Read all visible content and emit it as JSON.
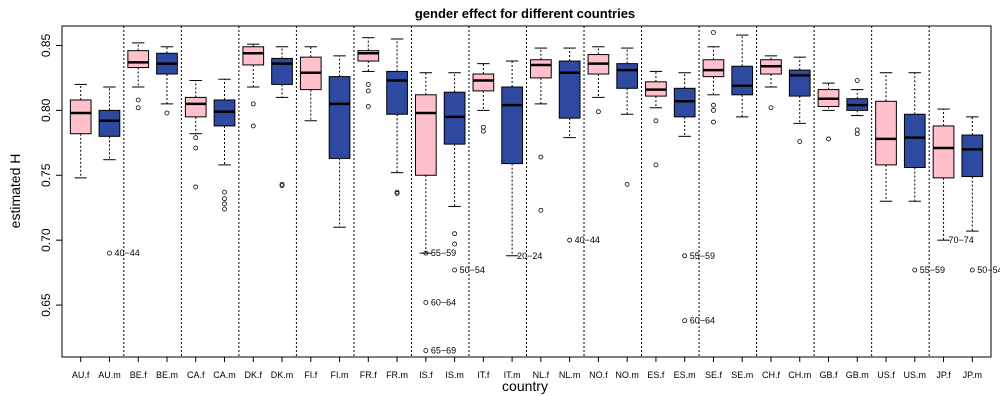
{
  "chart_data": {
    "type": "boxplot",
    "title": "gender effect for different countries",
    "xlabel": "country",
    "ylabel": "estimated H",
    "ylim": [
      0.61,
      0.865
    ],
    "yticks": [
      0.65,
      0.7,
      0.75,
      0.8,
      0.85
    ],
    "ytick_labels": [
      "0.65",
      "0.70",
      "0.75",
      "0.80",
      "0.85"
    ],
    "grid": false,
    "colors": {
      "female": "#ffc0cb",
      "male": "#2e4aa0"
    },
    "categories": [
      "AU.f",
      "AU.m",
      "BE.f",
      "BE.m",
      "CA.f",
      "CA.m",
      "DK.f",
      "DK.m",
      "FI.f",
      "FI.m",
      "FR.f",
      "FR.m",
      "IS.f",
      "IS.m",
      "IT.f",
      "IT.m",
      "NL.f",
      "NL.m",
      "NO.f",
      "NO.m",
      "ES.f",
      "ES.m",
      "SE.f",
      "SE.m",
      "CH.f",
      "CH.m",
      "GB.f",
      "GB.m",
      "US.f",
      "US.m",
      "JP.f",
      "JP.m"
    ],
    "boxes": [
      {
        "label": "AU.f",
        "sex": "f",
        "whisker_low": 0.748,
        "q1": 0.782,
        "median": 0.798,
        "q3": 0.808,
        "whisker_high": 0.82,
        "outliers": []
      },
      {
        "label": "AU.m",
        "sex": "m",
        "whisker_low": 0.762,
        "q1": 0.78,
        "median": 0.792,
        "q3": 0.8,
        "whisker_high": 0.818,
        "outliers": [
          0.69
        ]
      },
      {
        "label": "BE.f",
        "sex": "f",
        "whisker_low": 0.818,
        "q1": 0.833,
        "median": 0.837,
        "q3": 0.846,
        "whisker_high": 0.852,
        "outliers": [
          0.808,
          0.802
        ]
      },
      {
        "label": "BE.m",
        "sex": "m",
        "whisker_low": 0.805,
        "q1": 0.828,
        "median": 0.836,
        "q3": 0.844,
        "whisker_high": 0.849,
        "outliers": [
          0.798
        ]
      },
      {
        "label": "CA.f",
        "sex": "f",
        "whisker_low": 0.782,
        "q1": 0.795,
        "median": 0.805,
        "q3": 0.81,
        "whisker_high": 0.823,
        "outliers": [
          0.771,
          0.779,
          0.741
        ]
      },
      {
        "label": "CA.m",
        "sex": "m",
        "whisker_low": 0.758,
        "q1": 0.788,
        "median": 0.799,
        "q3": 0.808,
        "whisker_high": 0.824,
        "outliers": [
          0.737,
          0.732,
          0.728,
          0.724
        ]
      },
      {
        "label": "DK.f",
        "sex": "f",
        "whisker_low": 0.818,
        "q1": 0.835,
        "median": 0.844,
        "q3": 0.849,
        "whisker_high": 0.851,
        "outliers": [
          0.805,
          0.788
        ]
      },
      {
        "label": "DK.m",
        "sex": "m",
        "whisker_low": 0.81,
        "q1": 0.82,
        "median": 0.836,
        "q3": 0.84,
        "whisker_high": 0.849,
        "outliers": [
          0.742,
          0.743
        ]
      },
      {
        "label": "FI.f",
        "sex": "f",
        "whisker_low": 0.792,
        "q1": 0.816,
        "median": 0.829,
        "q3": 0.841,
        "whisker_high": 0.849,
        "outliers": []
      },
      {
        "label": "FI.m",
        "sex": "m",
        "whisker_low": 0.71,
        "q1": 0.763,
        "median": 0.805,
        "q3": 0.826,
        "whisker_high": 0.842,
        "outliers": []
      },
      {
        "label": "FR.f",
        "sex": "f",
        "whisker_low": 0.83,
        "q1": 0.838,
        "median": 0.844,
        "q3": 0.846,
        "whisker_high": 0.856,
        "outliers": [
          0.82,
          0.815,
          0.803
        ]
      },
      {
        "label": "FR.m",
        "sex": "m",
        "whisker_low": 0.752,
        "q1": 0.797,
        "median": 0.823,
        "q3": 0.83,
        "whisker_high": 0.855,
        "outliers": [
          0.737,
          0.736
        ]
      },
      {
        "label": "IS.f",
        "sex": "f",
        "whisker_low": 0.69,
        "q1": 0.75,
        "median": 0.798,
        "q3": 0.812,
        "whisker_high": 0.829,
        "outliers": [
          0.69,
          0.652,
          0.615
        ]
      },
      {
        "label": "IS.m",
        "sex": "m",
        "whisker_low": 0.726,
        "q1": 0.774,
        "median": 0.795,
        "q3": 0.814,
        "whisker_high": 0.829,
        "outliers": [
          0.705,
          0.697,
          0.677
        ]
      },
      {
        "label": "IT.f",
        "sex": "f",
        "whisker_low": 0.8,
        "q1": 0.815,
        "median": 0.823,
        "q3": 0.828,
        "whisker_high": 0.836,
        "outliers": [
          0.787,
          0.784
        ]
      },
      {
        "label": "IT.m",
        "sex": "m",
        "whisker_low": 0.688,
        "q1": 0.759,
        "median": 0.804,
        "q3": 0.818,
        "whisker_high": 0.838,
        "outliers": []
      },
      {
        "label": "NL.f",
        "sex": "f",
        "whisker_low": 0.805,
        "q1": 0.825,
        "median": 0.835,
        "q3": 0.839,
        "whisker_high": 0.848,
        "outliers": [
          0.764,
          0.723
        ]
      },
      {
        "label": "NL.m",
        "sex": "m",
        "whisker_low": 0.779,
        "q1": 0.794,
        "median": 0.829,
        "q3": 0.838,
        "whisker_high": 0.848,
        "outliers": [
          0.7
        ]
      },
      {
        "label": "NO.f",
        "sex": "f",
        "whisker_low": 0.81,
        "q1": 0.828,
        "median": 0.836,
        "q3": 0.843,
        "whisker_high": 0.849,
        "outliers": [
          0.799
        ]
      },
      {
        "label": "NO.m",
        "sex": "m",
        "whisker_low": 0.797,
        "q1": 0.817,
        "median": 0.831,
        "q3": 0.836,
        "whisker_high": 0.848,
        "outliers": [
          0.743
        ]
      },
      {
        "label": "ES.f",
        "sex": "f",
        "whisker_low": 0.802,
        "q1": 0.811,
        "median": 0.816,
        "q3": 0.822,
        "whisker_high": 0.83,
        "outliers": [
          0.792,
          0.758
        ]
      },
      {
        "label": "ES.m",
        "sex": "m",
        "whisker_low": 0.78,
        "q1": 0.795,
        "median": 0.807,
        "q3": 0.817,
        "whisker_high": 0.829,
        "outliers": [
          0.688,
          0.638
        ]
      },
      {
        "label": "SE.f",
        "sex": "f",
        "whisker_low": 0.812,
        "q1": 0.826,
        "median": 0.831,
        "q3": 0.839,
        "whisker_high": 0.849,
        "outliers": [
          0.86,
          0.804,
          0.8,
          0.791
        ]
      },
      {
        "label": "SE.m",
        "sex": "m",
        "whisker_low": 0.795,
        "q1": 0.812,
        "median": 0.819,
        "q3": 0.834,
        "whisker_high": 0.858,
        "outliers": []
      },
      {
        "label": "CH.f",
        "sex": "f",
        "whisker_low": 0.818,
        "q1": 0.828,
        "median": 0.834,
        "q3": 0.839,
        "whisker_high": 0.842,
        "outliers": [
          0.802
        ]
      },
      {
        "label": "CH.m",
        "sex": "m",
        "whisker_low": 0.79,
        "q1": 0.811,
        "median": 0.827,
        "q3": 0.831,
        "whisker_high": 0.841,
        "outliers": [
          0.776
        ]
      },
      {
        "label": "GB.f",
        "sex": "f",
        "whisker_low": 0.8,
        "q1": 0.803,
        "median": 0.809,
        "q3": 0.816,
        "whisker_high": 0.821,
        "outliers": [
          0.778
        ]
      },
      {
        "label": "GB.m",
        "sex": "m",
        "whisker_low": 0.796,
        "q1": 0.8,
        "median": 0.804,
        "q3": 0.809,
        "whisker_high": 0.816,
        "outliers": [
          0.823,
          0.782,
          0.785
        ]
      },
      {
        "label": "US.f",
        "sex": "f",
        "whisker_low": 0.73,
        "q1": 0.758,
        "median": 0.778,
        "q3": 0.807,
        "whisker_high": 0.829,
        "outliers": []
      },
      {
        "label": "US.m",
        "sex": "m",
        "whisker_low": 0.73,
        "q1": 0.756,
        "median": 0.779,
        "q3": 0.797,
        "whisker_high": 0.829,
        "outliers": [
          0.677
        ]
      },
      {
        "label": "JP.f",
        "sex": "f",
        "whisker_low": 0.7,
        "q1": 0.748,
        "median": 0.771,
        "q3": 0.788,
        "whisker_high": 0.801,
        "outliers": []
      },
      {
        "label": "JP.m",
        "sex": "m",
        "whisker_low": 0.707,
        "q1": 0.749,
        "median": 0.77,
        "q3": 0.781,
        "whisker_high": 0.795,
        "outliers": [
          0.677
        ]
      }
    ],
    "annotations": [
      {
        "box": "AU.m",
        "value": 0.69,
        "text": "40−44"
      },
      {
        "box": "IS.f",
        "value": 0.69,
        "text": "55−59"
      },
      {
        "box": "IS.f",
        "value": 0.652,
        "text": "60−64"
      },
      {
        "box": "IS.f",
        "value": 0.615,
        "text": "65−69"
      },
      {
        "box": "IS.m",
        "value": 0.677,
        "text": "50−54"
      },
      {
        "box": "IT.m",
        "value": 0.688,
        "text": "20−24"
      },
      {
        "box": "NL.m",
        "value": 0.7,
        "text": "40−44"
      },
      {
        "box": "ES.m",
        "value": 0.688,
        "text": "55−59"
      },
      {
        "box": "ES.m",
        "value": 0.638,
        "text": "60−64"
      },
      {
        "box": "US.m",
        "value": 0.677,
        "text": "55−59"
      },
      {
        "box": "JP.f",
        "value": 0.7,
        "text": "70−74"
      },
      {
        "box": "JP.m",
        "value": 0.677,
        "text": "50−54"
      }
    ]
  }
}
